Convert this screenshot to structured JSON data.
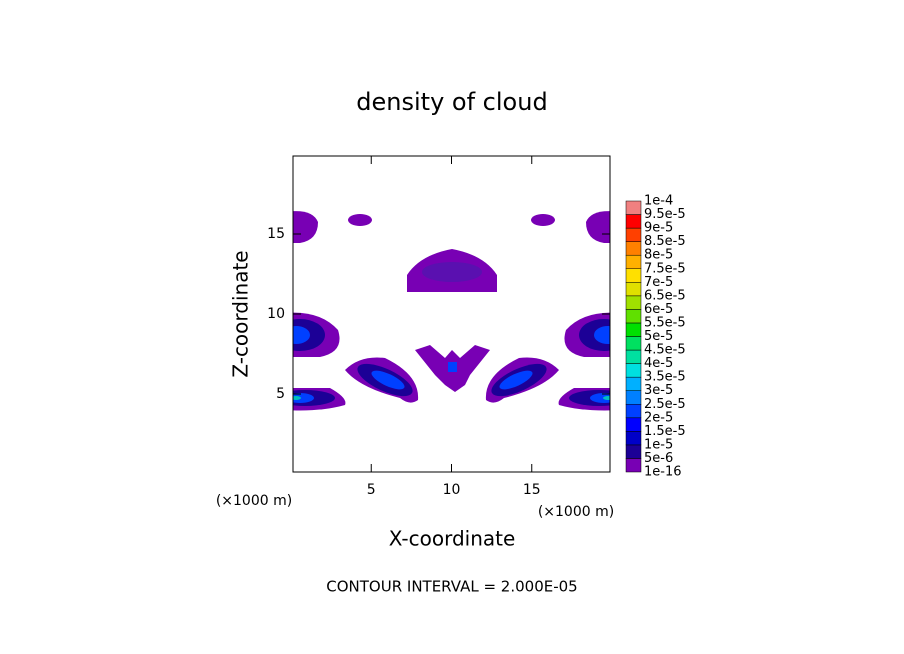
{
  "chart_data": {
    "type": "contour",
    "title": "density of cloud",
    "xlabel": "X-coordinate",
    "ylabel": "Z-coordinate",
    "x_unit": "(×1000 m)",
    "y_unit": "(×1000 m)",
    "xlim": [
      0.125,
      19.875
    ],
    "ylim": [
      0.125,
      19.875
    ],
    "xticks": [
      5,
      10,
      15
    ],
    "yticks": [
      5,
      10,
      15
    ],
    "annotation": "CONTOUR INTERVAL = 2.000E-05",
    "colorbar": {
      "levels": [
        {
          "value": 1e-16,
          "label": "1e-16"
        },
        {
          "value": 5e-06,
          "label": "5e-6"
        },
        {
          "value": 1e-05,
          "label": "1e-5"
        },
        {
          "value": 1.5e-05,
          "label": "1.5e-5"
        },
        {
          "value": 2e-05,
          "label": "2e-5"
        },
        {
          "value": 2.5e-05,
          "label": "2.5e-5"
        },
        {
          "value": 3e-05,
          "label": "3e-5"
        },
        {
          "value": 3.5e-05,
          "label": "3.5e-5"
        },
        {
          "value": 4e-05,
          "label": "4e-5"
        },
        {
          "value": 4.5e-05,
          "label": "4.5e-5"
        },
        {
          "value": 5e-05,
          "label": "5e-5"
        },
        {
          "value": 5.5e-05,
          "label": "5.5e-5"
        },
        {
          "value": 6e-05,
          "label": "6e-5"
        },
        {
          "value": 6.5e-05,
          "label": "6.5e-5"
        },
        {
          "value": 7e-05,
          "label": "7e-5"
        },
        {
          "value": 7.5e-05,
          "label": "7.5e-5"
        },
        {
          "value": 8e-05,
          "label": "8e-5"
        },
        {
          "value": 8.5e-05,
          "label": "8.5e-5"
        },
        {
          "value": 9e-05,
          "label": "9e-5"
        },
        {
          "value": 9.5e-05,
          "label": "9.5e-5"
        },
        {
          "value": 0.0001,
          "label": "1e-4"
        }
      ],
      "colors": [
        "#7800b4",
        "#1c0096",
        "#0000c8",
        "#0000ff",
        "#0040ff",
        "#0080ff",
        "#00b0ff",
        "#00e0e0",
        "#00e0a0",
        "#00e060",
        "#00e000",
        "#60e000",
        "#a0e000",
        "#e0e000",
        "#ffe000",
        "#ffb000",
        "#ff8000",
        "#ff4000",
        "#ff0000",
        "#f08080"
      ]
    }
  }
}
